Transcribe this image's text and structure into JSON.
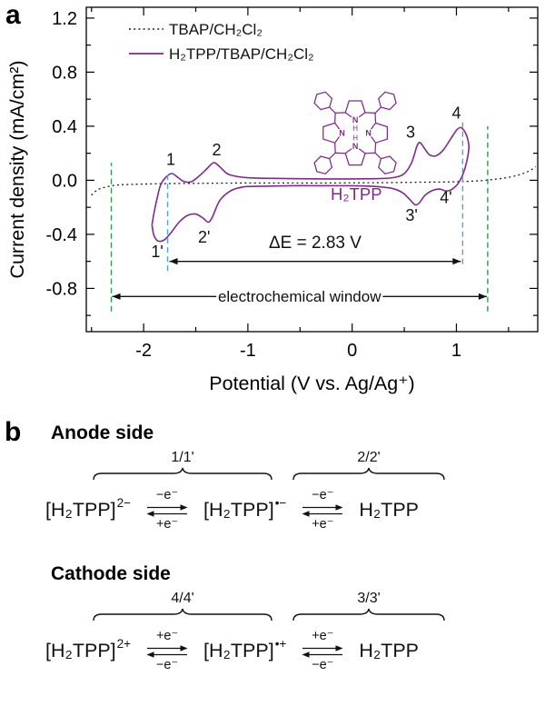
{
  "panel_a": {
    "label": "a"
  },
  "chart_data": {
    "type": "line",
    "title": "",
    "xlabel": "Potential (V vs. Ag/Ag⁺)",
    "ylabel": "Current density (mA/cm²)",
    "xlim": [
      -2.55,
      1.78
    ],
    "ylim": [
      -1.12,
      1.28
    ],
    "xticks": [
      -2,
      -1,
      0,
      1
    ],
    "yticks": [
      -0.8,
      -0.4,
      0.0,
      0.4,
      0.8,
      1.2
    ],
    "x_minor_step": 0.5,
    "y_minor_step": 0.2,
    "legend_position": "top-left",
    "grid": false,
    "series": [
      {
        "name": "TBAP/CH₂Cl₂",
        "color": "#1a1a1a",
        "dash": "2 3.2",
        "width": 1.3,
        "points": [
          [
            -2.5,
            -0.11
          ],
          [
            -2.44,
            -0.07
          ],
          [
            -2.36,
            -0.05
          ],
          [
            -2.25,
            -0.035
          ],
          [
            -2.1,
            -0.03
          ],
          [
            -1.8,
            -0.025
          ],
          [
            -1.4,
            -0.022
          ],
          [
            -1.0,
            -0.02
          ],
          [
            -0.6,
            -0.02
          ],
          [
            -0.2,
            -0.02
          ],
          [
            0.2,
            -0.018
          ],
          [
            0.6,
            -0.015
          ],
          [
            0.95,
            -0.012
          ],
          [
            1.2,
            -0.005
          ],
          [
            1.38,
            0.008
          ],
          [
            1.52,
            0.025
          ],
          [
            1.62,
            0.045
          ],
          [
            1.7,
            0.07
          ],
          [
            1.76,
            0.1
          ]
        ]
      },
      {
        "name": "H₂TPP/TBAP/CH₂Cl₂",
        "color": "#7d2a8d",
        "dash": "",
        "width": 1.6,
        "points": [
          [
            -1.92,
            -0.33
          ],
          [
            -1.9,
            -0.24
          ],
          [
            -1.87,
            -0.13
          ],
          [
            -1.84,
            -0.04
          ],
          [
            -1.79,
            0.02
          ],
          [
            -1.73,
            0.05
          ],
          [
            -1.67,
            0.02
          ],
          [
            -1.61,
            -0.01
          ],
          [
            -1.54,
            -0.01
          ],
          [
            -1.47,
            0.03
          ],
          [
            -1.4,
            0.08
          ],
          [
            -1.33,
            0.13
          ],
          [
            -1.27,
            0.1
          ],
          [
            -1.2,
            0.05
          ],
          [
            -1.12,
            0.03
          ],
          [
            -1.02,
            0.02
          ],
          [
            -0.85,
            0.015
          ],
          [
            -0.6,
            0.012
          ],
          [
            -0.3,
            0.01
          ],
          [
            0.0,
            0.01
          ],
          [
            0.25,
            0.012
          ],
          [
            0.4,
            0.02
          ],
          [
            0.5,
            0.05
          ],
          [
            0.57,
            0.13
          ],
          [
            0.62,
            0.25
          ],
          [
            0.65,
            0.28
          ],
          [
            0.69,
            0.24
          ],
          [
            0.74,
            0.19
          ],
          [
            0.8,
            0.18
          ],
          [
            0.87,
            0.22
          ],
          [
            0.94,
            0.3
          ],
          [
            1.0,
            0.37
          ],
          [
            1.04,
            0.39
          ],
          [
            1.08,
            0.36
          ],
          [
            1.11,
            0.3
          ],
          [
            1.12,
            0.24
          ],
          [
            1.1,
            0.14
          ],
          [
            1.06,
            0.04
          ],
          [
            1.01,
            -0.03
          ],
          [
            0.95,
            -0.07
          ],
          [
            0.9,
            -0.08
          ],
          [
            0.84,
            -0.065
          ],
          [
            0.77,
            -0.075
          ],
          [
            0.7,
            -0.11
          ],
          [
            0.64,
            -0.17
          ],
          [
            0.6,
            -0.18
          ],
          [
            0.55,
            -0.14
          ],
          [
            0.48,
            -0.09
          ],
          [
            0.38,
            -0.06
          ],
          [
            0.2,
            -0.045
          ],
          [
            0.0,
            -0.04
          ],
          [
            -0.3,
            -0.04
          ],
          [
            -0.6,
            -0.04
          ],
          [
            -0.9,
            -0.045
          ],
          [
            -1.05,
            -0.05
          ],
          [
            -1.17,
            -0.08
          ],
          [
            -1.27,
            -0.15
          ],
          [
            -1.34,
            -0.27
          ],
          [
            -1.38,
            -0.31
          ],
          [
            -1.43,
            -0.28
          ],
          [
            -1.5,
            -0.25
          ],
          [
            -1.58,
            -0.26
          ],
          [
            -1.66,
            -0.31
          ],
          [
            -1.74,
            -0.39
          ],
          [
            -1.8,
            -0.44
          ],
          [
            -1.86,
            -0.45
          ],
          [
            -1.9,
            -0.41
          ],
          [
            -1.92,
            -0.33
          ]
        ]
      }
    ],
    "vlines": [
      {
        "name": "deltaE-left-line",
        "x": -1.77,
        "y1": -0.67,
        "y2": 0.04,
        "color": "#4aa2f0"
      },
      {
        "name": "deltaE-right-line",
        "x": 1.06,
        "y1": -0.62,
        "y2": 0.43,
        "color": "#4aa2f0"
      },
      {
        "name": "window-left-line",
        "x": -2.31,
        "y1": -0.97,
        "y2": 0.13,
        "color": "#2e9a4c"
      },
      {
        "name": "window-right-line",
        "x": 1.3,
        "y1": -0.97,
        "y2": 0.4,
        "color": "#2e9a4c"
      }
    ],
    "peak_labels": [
      {
        "text": "1",
        "x": -1.74,
        "y": 0.115
      },
      {
        "text": "2",
        "x": -1.3,
        "y": 0.185
      },
      {
        "text": "3",
        "x": 0.56,
        "y": 0.315
      },
      {
        "text": "4",
        "x": 1.0,
        "y": 0.455
      },
      {
        "text": "1'",
        "x": -1.87,
        "y": -0.57
      },
      {
        "text": "2'",
        "x": -1.42,
        "y": -0.46
      },
      {
        "text": "3'",
        "x": 0.57,
        "y": -0.3
      },
      {
        "text": "4'",
        "x": 0.9,
        "y": -0.17
      }
    ],
    "molecule": {
      "x": 0.03,
      "y": 0.35,
      "color": "#7d2a8d",
      "label_text": "H₂TPP",
      "label_x": 0.04,
      "label_y": -0.145
    },
    "delta_e": {
      "text": "ΔE = 2.83 V",
      "x1": -1.77,
      "x2": 1.06,
      "y_arrow": -0.6,
      "y_text": -0.5
    },
    "window": {
      "text": "electrochemical window",
      "x1": -2.31,
      "x2": 1.3,
      "y": -0.86
    }
  },
  "panel_b": {
    "label": "b",
    "sections": [
      {
        "heading": "Anode side",
        "brace_labels": [
          "1/1'",
          "2/2'"
        ],
        "species": [
          {
            "base": "[H₂TPP]",
            "sup": "2−"
          },
          {
            "base": "[H₂TPP]",
            "sup": "•−"
          },
          {
            "base": "H₂TPP",
            "sup": ""
          }
        ],
        "arrows": [
          {
            "top": "−e⁻",
            "bottom": "+e⁻"
          },
          {
            "top": "−e⁻",
            "bottom": "+e⁻"
          }
        ]
      },
      {
        "heading": "Cathode side",
        "brace_labels": [
          "4/4'",
          "3/3'"
        ],
        "species": [
          {
            "base": "[H₂TPP]",
            "sup": "2+"
          },
          {
            "base": "[H₂TPP]",
            "sup": "•+"
          },
          {
            "base": "H₂TPP",
            "sup": ""
          }
        ],
        "arrows": [
          {
            "top": "+e⁻",
            "bottom": "−e⁻"
          },
          {
            "top": "+e⁻",
            "bottom": "−e⁻"
          }
        ]
      }
    ]
  }
}
